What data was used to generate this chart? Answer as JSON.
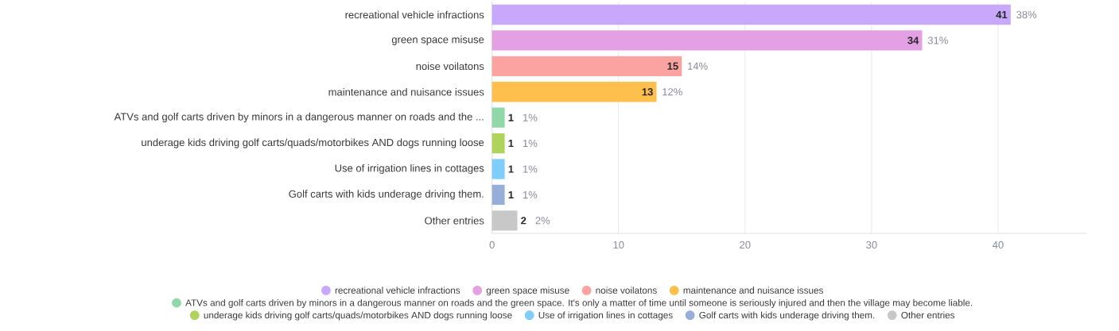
{
  "chart_data": {
    "type": "bar",
    "orientation": "horizontal",
    "categories": [
      "recreational vehicle infractions",
      "green space misuse",
      "noise voilatons",
      "maintenance and nuisance issues",
      "ATVs and golf carts driven by minors in a dangerous manner on roads and the ...",
      "underage kids driving golf carts/quads/motorbikes AND dogs running loose",
      "Use of irrigation lines in cottages",
      "Golf carts with kids underage driving them.",
      "Other entries"
    ],
    "series": [
      {
        "name": "recreational vehicle infractions",
        "color": "#c7a8fb",
        "values": [
          41,
          null,
          null,
          null,
          null,
          null,
          null,
          null,
          null
        ]
      },
      {
        "name": "green space misuse",
        "color": "#e3a0e3",
        "values": [
          null,
          34,
          null,
          null,
          null,
          null,
          null,
          null,
          null
        ]
      },
      {
        "name": "noise voilatons",
        "color": "#fba3a0",
        "values": [
          null,
          null,
          15,
          null,
          null,
          null,
          null,
          null,
          null
        ]
      },
      {
        "name": "maintenance and nuisance issues",
        "color": "#ffbf4d",
        "values": [
          null,
          null,
          null,
          13,
          null,
          null,
          null,
          null,
          null
        ]
      },
      {
        "name": "ATVs and golf carts driven by minors in a dangerous manner on roads and the green space. It's only a matter of time until someone is seriously injured and then the village may become liable.",
        "color": "#90d8a8",
        "values": [
          null,
          null,
          null,
          null,
          1,
          null,
          null,
          null,
          null
        ]
      },
      {
        "name": "underage kids driving golf carts/quads/motorbikes AND dogs running loose",
        "color": "#b0d35c",
        "values": [
          null,
          null,
          null,
          null,
          null,
          1,
          null,
          null,
          null
        ]
      },
      {
        "name": "Use of irrigation lines in cottages",
        "color": "#7ecdfb",
        "values": [
          null,
          null,
          null,
          null,
          null,
          null,
          1,
          null,
          null
        ]
      },
      {
        "name": "Golf carts with kids underage driving them.",
        "color": "#97aed8",
        "values": [
          null,
          null,
          null,
          null,
          null,
          null,
          null,
          1,
          null
        ]
      },
      {
        "name": "Other entries",
        "color": "#c8c8c8",
        "values": [
          null,
          null,
          null,
          null,
          null,
          null,
          null,
          null,
          2
        ]
      }
    ],
    "annotations": [
      {
        "text": "38%",
        "x": 41,
        "y": "recreational vehicle infractions"
      },
      {
        "text": "31%",
        "x": 34,
        "y": "green space misuse"
      },
      {
        "text": "14%",
        "x": 15,
        "y": "noise voilatons"
      },
      {
        "text": "12%",
        "x": 13,
        "y": "maintenance and nuisance issues"
      },
      {
        "text": "1%",
        "x": 1,
        "y": "ATVs and golf carts driven by minors in a dangerous manner on roads and the ..."
      },
      {
        "text": "1%",
        "x": 1,
        "y": "underage kids driving golf carts/quads/motorbikes AND dogs running loose"
      },
      {
        "text": "1%",
        "x": 1,
        "y": "Use of irrigation lines in cottages"
      },
      {
        "text": "1%",
        "x": 1,
        "y": "Golf carts with kids underage driving them."
      },
      {
        "text": "2%",
        "x": 2,
        "y": "Other entries"
      }
    ],
    "xlim": [
      0,
      47
    ],
    "xticks": [
      0,
      10,
      20,
      30,
      40
    ],
    "grid": "x",
    "legend": "bottom",
    "data_labels": true
  }
}
